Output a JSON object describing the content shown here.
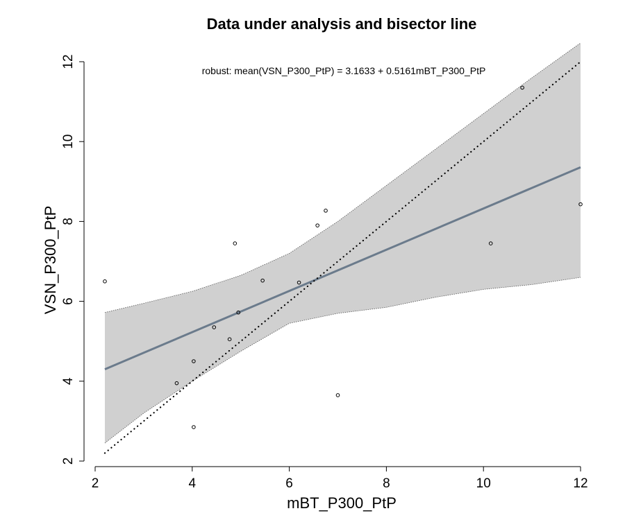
{
  "chart_data": {
    "type": "scatter",
    "title": "Data under analysis and bisector line",
    "xlabel": "mBT_P300_PtP",
    "ylabel": "VSN_P300_PtP",
    "annotation": "robust: mean(VSN_P300_PtP) = 3.1633 + 0.5161mBT_P300_PtP",
    "xlim": [
      2,
      12
    ],
    "ylim": [
      2,
      12.3
    ],
    "x_ticks": [
      2,
      4,
      6,
      8,
      10,
      12
    ],
    "y_ticks": [
      2,
      4,
      6,
      8,
      10,
      12
    ],
    "grid": false,
    "points": [
      {
        "x": 2.2,
        "y": 6.5
      },
      {
        "x": 3.68,
        "y": 3.95
      },
      {
        "x": 4.03,
        "y": 2.85
      },
      {
        "x": 4.03,
        "y": 4.5
      },
      {
        "x": 4.45,
        "y": 5.35
      },
      {
        "x": 4.77,
        "y": 5.05
      },
      {
        "x": 4.88,
        "y": 7.45
      },
      {
        "x": 4.95,
        "y": 5.72
      },
      {
        "x": 5.45,
        "y": 6.52
      },
      {
        "x": 6.2,
        "y": 6.47
      },
      {
        "x": 6.58,
        "y": 7.9
      },
      {
        "x": 6.75,
        "y": 8.27
      },
      {
        "x": 7.0,
        "y": 3.65
      },
      {
        "x": 10.15,
        "y": 7.45
      },
      {
        "x": 10.8,
        "y": 11.35
      },
      {
        "x": 12.0,
        "y": 8.43
      }
    ],
    "fit_line": {
      "intercept": 3.1633,
      "slope": 0.5161,
      "x_range": [
        2.2,
        12.0
      ],
      "color": "#6b7b8c"
    },
    "bisector": {
      "x_range": [
        2.2,
        12.0
      ],
      "style": "dotted"
    },
    "confidence_band": {
      "color": "#d0d0d0",
      "x": [
        2.2,
        3.0,
        4.0,
        5.0,
        6.0,
        7.0,
        8.0,
        9.0,
        10.0,
        11.0,
        12.0
      ],
      "lower": [
        2.45,
        3.2,
        4.0,
        4.75,
        5.45,
        5.7,
        5.85,
        6.1,
        6.3,
        6.42,
        6.6
      ],
      "upper": [
        5.72,
        5.95,
        6.25,
        6.65,
        7.2,
        8.0,
        8.9,
        9.8,
        10.7,
        11.6,
        12.5
      ]
    }
  }
}
